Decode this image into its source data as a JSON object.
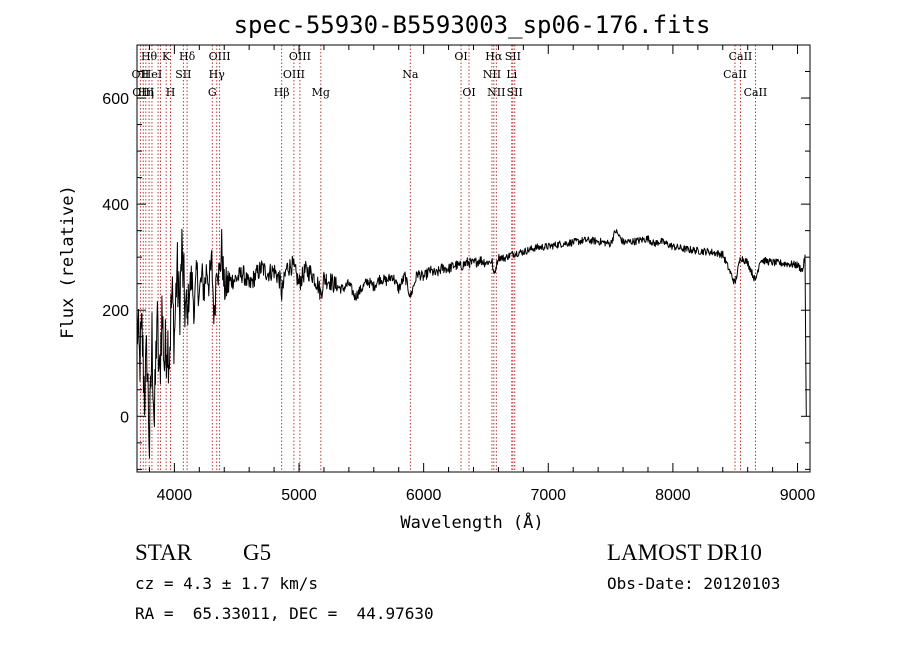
{
  "chart_data": {
    "type": "line",
    "title": "spec-55930-B5593003_sp06-176.fits",
    "xlabel": "Wavelength (Å)",
    "ylabel": "Flux (relative)",
    "xlim": [
      3700,
      9100
    ],
    "ylim": [
      -105,
      700
    ],
    "xticks": [
      4000,
      5000,
      6000,
      7000,
      8000,
      9000
    ],
    "yticks": [
      0,
      200,
      400,
      600
    ],
    "line_color": "#000000",
    "marker_color": "#b22222",
    "series": [
      {
        "x": [
          3700,
          3720,
          3740,
          3760,
          3780,
          3800,
          3820,
          3840,
          3860,
          3880,
          3900,
          3920,
          3940,
          3960,
          3980,
          4000,
          4020,
          4040,
          4060,
          4080,
          4100,
          4120,
          4140,
          4160,
          4180,
          4200,
          4220,
          4240,
          4260,
          4280,
          4300,
          4320,
          4340,
          4360,
          4380,
          4400,
          4450,
          4500,
          4550,
          4600,
          4650,
          4700,
          4750,
          4800,
          4850,
          4861,
          4900,
          4950,
          5000,
          5050,
          5100,
          5150,
          5175,
          5200,
          5250,
          5300,
          5350,
          5400,
          5450,
          5500,
          5550,
          5600,
          5650,
          5700,
          5750,
          5800,
          5850,
          5893,
          5950,
          6000,
          6050,
          6100,
          6150,
          6200,
          6250,
          6300,
          6350,
          6400,
          6450,
          6500,
          6550,
          6563,
          6600,
          6650,
          6700,
          6750,
          6800,
          6900,
          7000,
          7100,
          7200,
          7300,
          7400,
          7500,
          7540,
          7600,
          7700,
          7800,
          7850,
          7900,
          8000,
          8100,
          8200,
          8300,
          8400,
          8498,
          8542,
          8600,
          8662,
          8700,
          8800,
          8900,
          9000,
          9040,
          9060,
          9070
        ],
        "values": [
          180,
          100,
          160,
          40,
          120,
          -60,
          150,
          -20,
          190,
          60,
          200,
          100,
          150,
          120,
          230,
          150,
          280,
          200,
          310,
          220,
          180,
          240,
          260,
          200,
          270,
          230,
          260,
          240,
          280,
          250,
          290,
          180,
          300,
          260,
          320,
          240,
          255,
          260,
          270,
          245,
          265,
          280,
          270,
          275,
          255,
          230,
          280,
          285,
          250,
          275,
          270,
          250,
          230,
          260,
          255,
          245,
          240,
          250,
          225,
          240,
          255,
          245,
          260,
          255,
          265,
          240,
          265,
          225,
          270,
          262,
          275,
          268,
          280,
          278,
          285,
          283,
          290,
          288,
          295,
          290,
          292,
          265,
          300,
          298,
          305,
          308,
          310,
          318,
          320,
          325,
          328,
          332,
          330,
          325,
          350,
          328,
          330,
          335,
          325,
          330,
          320,
          315,
          312,
          310,
          305,
          250,
          300,
          290,
          255,
          295,
          290,
          288,
          285,
          275,
          300,
          0
        ]
      }
    ],
    "lines": [
      {
        "w": 3727,
        "l": "OII",
        "r": 1
      },
      {
        "w": 3750,
        "l": "OIII",
        "r": 2
      },
      {
        "w": 3771,
        "l": "Hη",
        "r": 2
      },
      {
        "w": 3797,
        "l": "Hθ",
        "r": 0
      },
      {
        "w": 3820,
        "l": "HeI",
        "r": 1
      },
      {
        "w": 3869,
        "l": "",
        "r": 1
      },
      {
        "w": 3889,
        "l": "",
        "r": 1
      },
      {
        "w": 3934,
        "l": "K",
        "r": 0
      },
      {
        "w": 3969,
        "l": "H",
        "r": 2
      },
      {
        "w": 4072,
        "l": "SII",
        "r": 1
      },
      {
        "w": 4102,
        "l": "Hδ",
        "r": 0
      },
      {
        "w": 4304,
        "l": "G",
        "r": 2
      },
      {
        "w": 4340,
        "l": "Hγ",
        "r": 1
      },
      {
        "w": 4363,
        "l": "OIII",
        "r": 0
      },
      {
        "w": 4861,
        "l": "Hβ",
        "r": 2
      },
      {
        "w": 4959,
        "l": "OIII",
        "r": 1
      },
      {
        "w": 5007,
        "l": "OIII",
        "r": 0
      },
      {
        "w": 5175,
        "l": "Mg",
        "r": 2
      },
      {
        "w": 5893,
        "l": "Na",
        "r": 1
      },
      {
        "w": 6300,
        "l": "OI",
        "r": 0
      },
      {
        "w": 6364,
        "l": "OI",
        "r": 2
      },
      {
        "w": 6548,
        "l": "NII",
        "r": 1
      },
      {
        "w": 6563,
        "l": "Hα",
        "r": 0
      },
      {
        "w": 6583,
        "l": "NII",
        "r": 2
      },
      {
        "w": 6707,
        "l": "Li",
        "r": 1
      },
      {
        "w": 6716,
        "l": "SII",
        "r": 0
      },
      {
        "w": 6731,
        "l": "SII",
        "r": 2
      },
      {
        "w": 8498,
        "l": "CaII",
        "r": 1
      },
      {
        "w": 8542,
        "l": "CaII",
        "r": 0
      },
      {
        "w": 8662,
        "l": "CaII",
        "r": 2
      }
    ]
  },
  "info": {
    "class": "STAR",
    "subclass": "G5",
    "cz": "cz = 4.3 ± 1.7 km/s",
    "radec": "RA =  65.33011, DEC =  44.97630",
    "survey": "LAMOST DR10",
    "obsdate": "Obs-Date: 20120103"
  }
}
